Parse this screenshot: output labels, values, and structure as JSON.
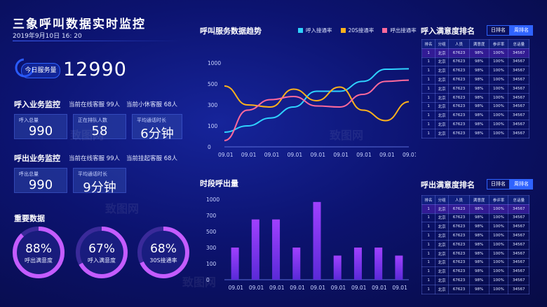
{
  "header": {
    "title": "三象呼叫数据实时监控",
    "datetime": "2019年9月10日 16: 20"
  },
  "today": {
    "label": "今日服务量",
    "value": "12990"
  },
  "inbound": {
    "title": "呼入业务监控",
    "online": "当前在线客服 99人",
    "idle": "当前小休客服 68人",
    "cards": [
      {
        "label": "呼入总量",
        "value": "990"
      },
      {
        "label": "正在排队人数",
        "value": "58"
      },
      {
        "label": "平均通话时长",
        "value": "6分钟"
      }
    ]
  },
  "outbound": {
    "title": "呼出业务监控",
    "online": "当前在线客服 99人",
    "hangup": "当前挂起客服 68人",
    "cards": [
      {
        "label": "呼出总量",
        "value": "990"
      },
      {
        "label": "平均通话时长",
        "value": "9分钟"
      }
    ]
  },
  "key": {
    "title": "重要数据",
    "items": [
      {
        "value": "88%",
        "label": "呼出满意度",
        "fraction": 0.88
      },
      {
        "value": "67%",
        "label": "呼入满意度",
        "fraction": 0.67
      },
      {
        "value": "68%",
        "label": "30S接通率",
        "fraction": 0.68
      }
    ]
  },
  "trend": {
    "title": "呼叫服务数据趋势"
  },
  "hourly": {
    "title": "时段呼出量"
  },
  "rank_in": {
    "title": "呼入满意度排名",
    "btn_day": "日排名",
    "btn_week": "周排名"
  },
  "rank_out": {
    "title": "呼出满意度排名",
    "btn_day": "日排名",
    "btn_week": "周排名"
  },
  "table": {
    "headers": [
      "排名",
      "分组",
      "人员",
      "满意度",
      "参评率",
      "总话量"
    ],
    "row": [
      "1",
      "北京",
      "67623",
      "98%",
      "100%",
      "34567"
    ],
    "rows": 10
  },
  "watermark": "致图网",
  "chart_data": [
    {
      "type": "line",
      "title": "呼叫服务数据趋势",
      "ylim": [
        0,
        1000
      ],
      "yticks": [
        0,
        100,
        300,
        500,
        1000
      ],
      "categories": [
        "09.01",
        "09.01",
        "09.01",
        "09.01",
        "09.01",
        "09.01",
        "09.01",
        "09.01",
        "09.01"
      ],
      "colors": {
        "呼入接通率": "#2fd3ff",
        "20S接通率": "#ffb21c",
        "呼出接通率": "#ff6a9c"
      },
      "series": [
        {
          "name": "呼入接通率",
          "values": [
            70,
            100,
            175,
            280,
            430,
            430,
            560,
            850,
            860
          ]
        },
        {
          "name": "20S接通率",
          "values": [
            480,
            300,
            280,
            450,
            340,
            470,
            250,
            150,
            330
          ]
        },
        {
          "name": "呼出接通率",
          "values": [
            30,
            250,
            350,
            380,
            290,
            280,
            400,
            560,
            590
          ]
        }
      ]
    },
    {
      "type": "bar",
      "title": "时段呼出量",
      "ylim": [
        0,
        1000
      ],
      "yticks": [
        0,
        100,
        300,
        500,
        700,
        1000
      ],
      "categories": [
        "09.01",
        "09.01",
        "09.01",
        "09.01",
        "09.01",
        "09.01",
        "09.01",
        "09.01",
        "09.01"
      ],
      "values": [
        300,
        650,
        650,
        300,
        950,
        200,
        300,
        300,
        200
      ]
    }
  ]
}
